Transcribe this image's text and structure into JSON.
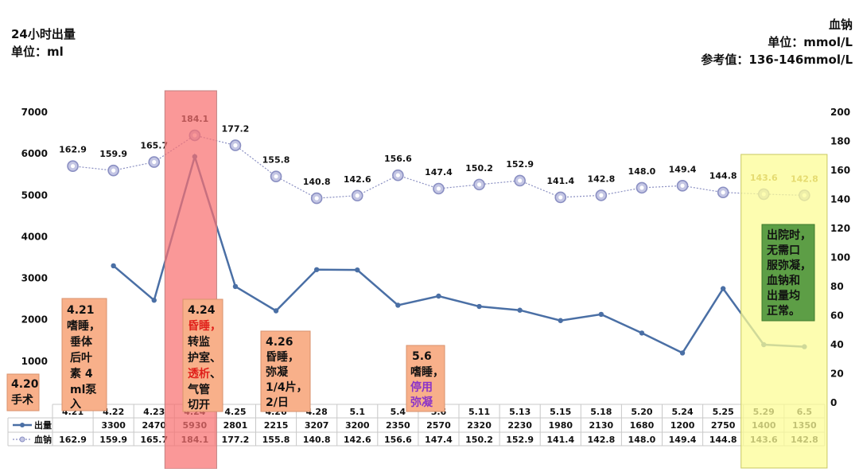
{
  "left_header": {
    "line1": "24小时出量",
    "line2": "单位：ml"
  },
  "right_header": {
    "line1": "血钠",
    "line2": "单位：mmol/L",
    "line3": "参考值：136-146mmol/L"
  },
  "colors": {
    "output_line": "#4a6fa5",
    "sodium_line": "#8a8fc2",
    "sodium_marker_fill": "#c4c6e4",
    "highlight_red": "rgba(248,112,112,0.72)",
    "highlight_yellow": "rgba(252,252,150,0.75)",
    "note_box": "#f8b08a",
    "green_box": "#5d9e46",
    "accent_red": "#e0201a",
    "accent_purple": "#8b34c8"
  },
  "chart_data": {
    "type": "line",
    "categories": [
      "4.21",
      "4.22",
      "4.23",
      "4.24",
      "4.25",
      "4.26",
      "4.28",
      "5.1",
      "5.4",
      "5.6",
      "5.11",
      "5.13",
      "5.15",
      "5.18",
      "5.20",
      "5.24",
      "5.25",
      "5.29",
      "6.5"
    ],
    "series": [
      {
        "name": "出量",
        "axis": "left",
        "values": [
          null,
          3300,
          2470,
          5930,
          2801,
          2215,
          3207,
          3200,
          2350,
          2570,
          2320,
          2230,
          1980,
          2130,
          1680,
          1200,
          2750,
          1400,
          1350
        ]
      },
      {
        "name": "血钠",
        "axis": "right",
        "values": [
          162.9,
          159.9,
          165.7,
          184.1,
          177.2,
          155.8,
          140.8,
          142.6,
          156.6,
          147.4,
          150.2,
          152.9,
          141.4,
          142.8,
          148.0,
          149.4,
          144.8,
          143.6,
          142.8
        ]
      }
    ],
    "table_rows": [
      {
        "label": "出量",
        "values": [
          "",
          "3300",
          "2470",
          "5930",
          "2801",
          "2215",
          "3207",
          "3200",
          "2350",
          "2570",
          "2320",
          "2230",
          "1980",
          "2130",
          "1680",
          "1200",
          "2750",
          "1400",
          "1350"
        ]
      },
      {
        "label": "血钠",
        "values": [
          "162.9",
          "159.9",
          "165.7",
          "184.1",
          "177.2",
          "155.8",
          "140.8",
          "142.6",
          "156.6",
          "147.4",
          "150.2",
          "152.9",
          "141.4",
          "142.8",
          "148.0",
          "149.4",
          "144.8",
          "143.6",
          "142.8"
        ]
      }
    ],
    "sodium_labels": [
      "162.9",
      "159.9",
      "165.7",
      "184.1",
      "177.2",
      "155.8",
      "140.8",
      "142.6",
      "156.6",
      "147.4",
      "150.2",
      "152.9",
      "141.4",
      "142.8",
      "148.0",
      "149.4",
      "144.8",
      "143.6",
      "142.8"
    ],
    "left_axis": {
      "ylim": [
        0,
        7000
      ],
      "ticks": [
        "0",
        "1000",
        "2000",
        "3000",
        "4000",
        "5000",
        "6000",
        "7000"
      ],
      "tick_values": [
        0,
        1000,
        2000,
        3000,
        4000,
        5000,
        6000,
        7000
      ]
    },
    "right_axis": {
      "ylim": [
        0,
        200
      ],
      "ticks": [
        "0",
        "20",
        "40",
        "60",
        "80",
        "100",
        "120",
        "140",
        "160",
        "180",
        "200"
      ],
      "tick_values": [
        0,
        20,
        40,
        60,
        80,
        100,
        120,
        140,
        160,
        180,
        200
      ]
    },
    "highlight_red_index": 3,
    "highlight_yellow_range": [
      17,
      18
    ]
  },
  "annotations": {
    "a420": [
      "4.20",
      "手术"
    ],
    "a421": [
      "4.21",
      "嗜睡，",
      "垂体",
      "后叶",
      "素 4",
      "ml泵",
      "入"
    ],
    "a424_title": "4.24",
    "a424_red": "昏睡，",
    "a424_mid": "转监",
    "a424_mid2": "护室、",
    "a424_red2": "透析",
    "a424_mid3": "、",
    "a424_tail1": "气管",
    "a424_tail2": "切开",
    "a426": [
      "4.26",
      "昏睡，",
      "弥凝",
      "1/4片，",
      "2/日"
    ],
    "a56_title": "5.6",
    "a56_line1": "嗜睡，",
    "a56_purple": [
      "停用",
      "弥凝"
    ],
    "discharge": [
      "出院时，",
      "无需口",
      "服弥凝，",
      "血钠和",
      "出量均",
      "正常。"
    ]
  }
}
